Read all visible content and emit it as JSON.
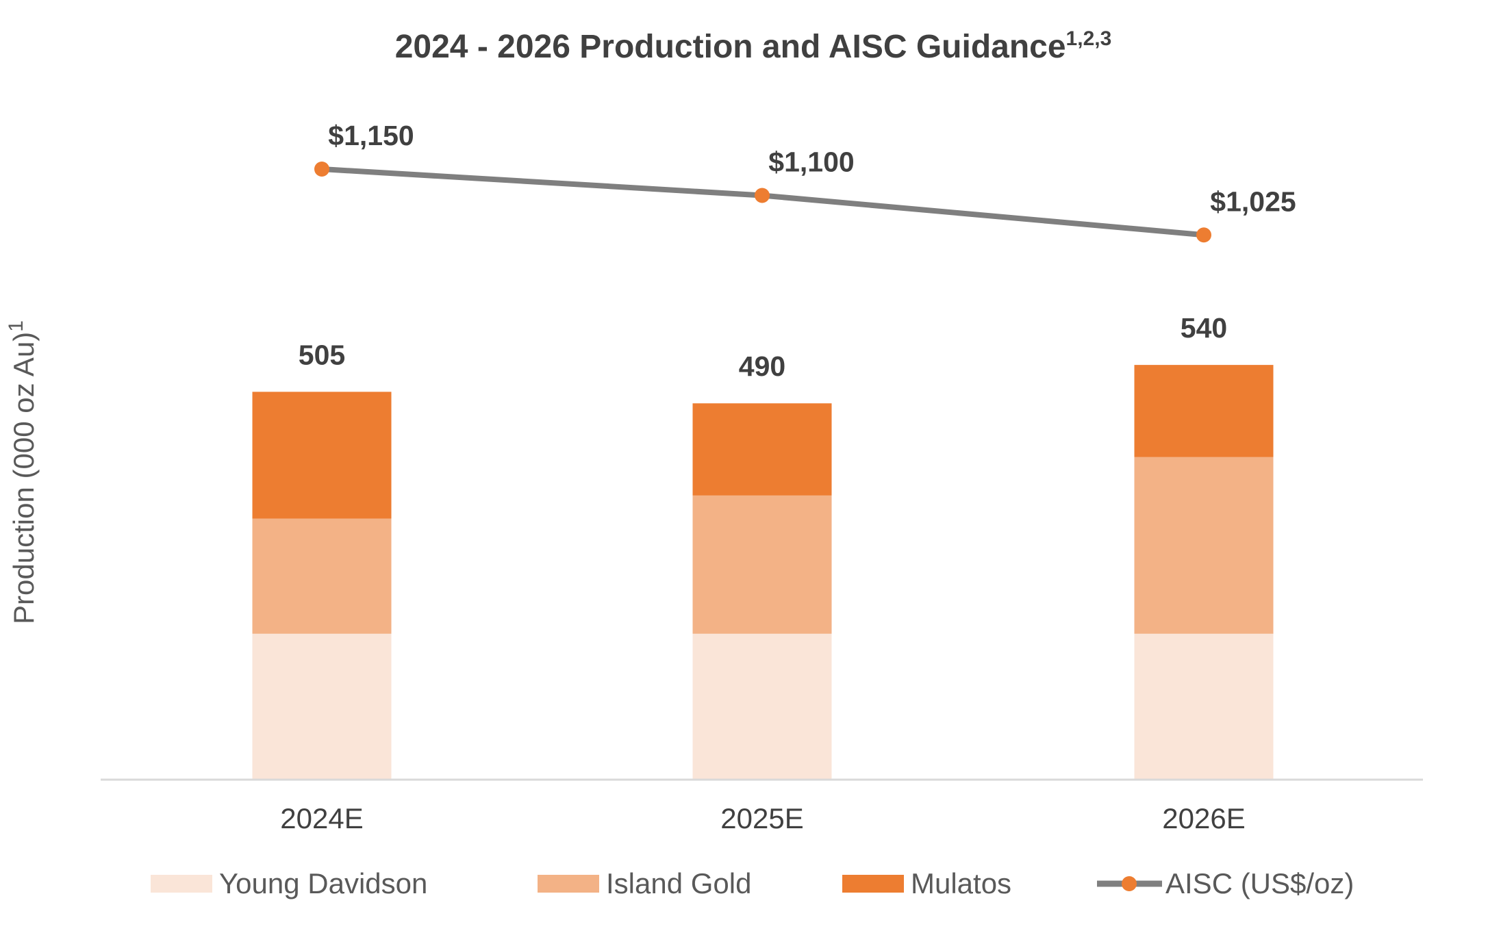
{
  "chart_data": {
    "type": "bar",
    "stacked": true,
    "title": "2024 - 2026 Production and AISC Guidance",
    "title_superscript": "1,2,3",
    "ylabel": "Production (000 oz Au)",
    "ylabel_superscript": "1",
    "categories": [
      "2024E",
      "2025E",
      "2026E"
    ],
    "series": [
      {
        "name": "Young Davidson",
        "values": [
          190,
          190,
          190
        ],
        "color": "#FAE5D8"
      },
      {
        "name": "Island Gold",
        "values": [
          150,
          180,
          230
        ],
        "color": "#F3B286"
      },
      {
        "name": "Mulatos",
        "values": [
          165,
          120,
          120
        ],
        "color": "#ED7D31"
      }
    ],
    "totals": [
      "505",
      "490",
      "540"
    ],
    "line_series": {
      "name": "AISC (US$/oz)",
      "values": [
        1150,
        1100,
        1025
      ],
      "labels": [
        "$1,150",
        "$1,100",
        "$1,025"
      ],
      "line_color": "#7F7F7F",
      "marker_color": "#ED7D31"
    },
    "grid": false,
    "legend": "bottom"
  }
}
